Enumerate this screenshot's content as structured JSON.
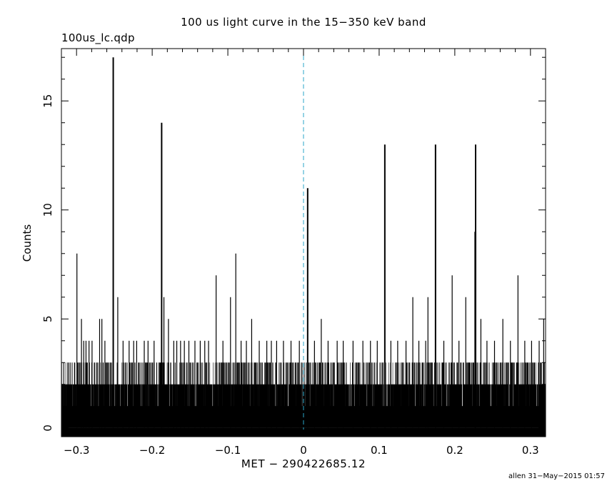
{
  "chart_data": {
    "type": "bar",
    "title": "100 us light curve in the 15−350 keV band",
    "file_label": "100us_lc.qdp",
    "xlabel": "MET − 290422685.12",
    "ylabel": "Counts",
    "footer": "allen 31−May−2015 01:57",
    "xlim": [
      -0.32,
      0.32
    ],
    "ylim": [
      -0.4,
      17.4
    ],
    "xticks": [
      -0.3,
      -0.2,
      -0.1,
      0,
      0.1,
      0.2,
      0.3
    ],
    "xtick_labels": [
      "−0.3",
      "−0.2",
      "−0.1",
      "0",
      "0.1",
      "0.2",
      "0.3"
    ],
    "yticks": [
      0,
      5,
      10,
      15
    ],
    "ytick_labels": [
      "0",
      "5",
      "10",
      "15"
    ],
    "bin_width": 0.0001,
    "reference_line": {
      "x": 0,
      "style": "dashed",
      "color": "#2aa6c8"
    },
    "line_color": "#000000",
    "background_level": [
      2,
      3
    ],
    "series": [
      {
        "values": {
          "x": [
            -0.2995,
            -0.2935,
            -0.2905,
            -0.2875,
            -0.2835,
            -0.2795,
            -0.2695,
            -0.2665,
            -0.2625,
            -0.2515,
            -0.2455,
            -0.2385,
            -0.2305,
            -0.2245,
            -0.2205,
            -0.2105,
            -0.2055,
            -0.1975,
            -0.1875,
            -0.1845,
            -0.1785,
            -0.1715,
            -0.1675,
            -0.1625,
            -0.1575,
            -0.1515,
            -0.1435,
            -0.1365,
            -0.1305,
            -0.1255,
            -0.1155,
            -0.1065,
            -0.0965,
            -0.0895,
            -0.0825,
            -0.0755,
            -0.0685,
            -0.0585,
            -0.0485,
            -0.0425,
            -0.0355,
            -0.0265,
            -0.0165,
            -0.0055,
            0.0055,
            0.0145,
            0.0235,
            0.0325,
            0.0445,
            0.0525,
            0.0655,
            0.0785,
            0.0885,
            0.0975,
            0.1075,
            0.1155,
            0.1245,
            0.1355,
            0.1445,
            0.1525,
            0.1615,
            0.1645,
            0.1745,
            0.1855,
            0.1965,
            0.2055,
            0.2145,
            0.2265,
            0.2275,
            0.2345,
            0.2425,
            0.2525,
            0.2635,
            0.2735,
            0.2835,
            0.2925,
            0.3015,
            0.3115,
            0.3175
          ],
          "y": [
            8,
            5,
            4,
            4,
            4,
            4,
            5,
            5,
            4,
            17,
            6,
            4,
            4,
            4,
            4,
            4,
            4,
            4,
            14,
            6,
            5,
            4,
            4,
            4,
            4,
            4,
            4,
            4,
            4,
            4,
            7,
            4,
            6,
            8,
            4,
            4,
            5,
            4,
            4,
            4,
            4,
            4,
            4,
            4,
            11,
            4,
            5,
            4,
            4,
            4,
            4,
            4,
            4,
            4,
            13,
            4,
            4,
            4,
            6,
            4,
            4,
            6,
            13,
            4,
            7,
            4,
            6,
            9,
            13,
            5,
            4,
            4,
            5,
            4,
            7,
            4,
            4,
            4,
            5
          ]
        }
      }
    ]
  }
}
